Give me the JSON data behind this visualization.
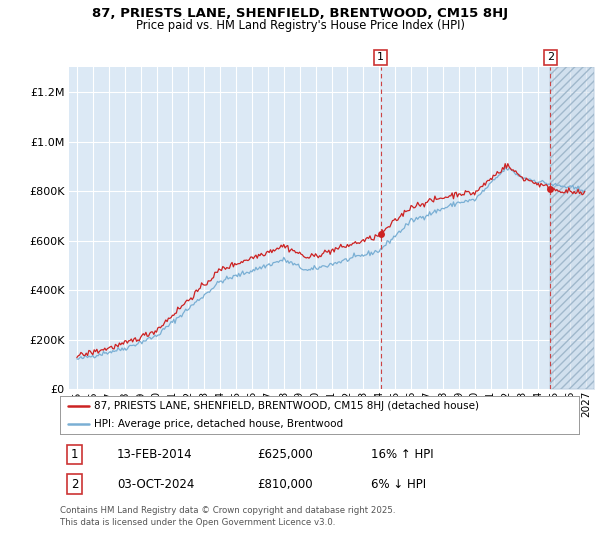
{
  "title_line1": "87, PRIESTS LANE, SHENFIELD, BRENTWOOD, CM15 8HJ",
  "title_line2": "Price paid vs. HM Land Registry's House Price Index (HPI)",
  "background_color": "#ffffff",
  "plot_bg_color": "#dce9f5",
  "grid_color": "#ffffff",
  "red_color": "#cc2222",
  "blue_color": "#7aafd4",
  "hatch_color": "#b0c4d8",
  "sale1_date": "13-FEB-2014",
  "sale1_price": 625000,
  "sale1_label": "16% ↑ HPI",
  "sale2_date": "03-OCT-2024",
  "sale2_price": 810000,
  "sale2_label": "6% ↓ HPI",
  "legend_label_red": "87, PRIESTS LANE, SHENFIELD, BRENTWOOD, CM15 8HJ (detached house)",
  "legend_label_blue": "HPI: Average price, detached house, Brentwood",
  "footer": "Contains HM Land Registry data © Crown copyright and database right 2025.\nThis data is licensed under the Open Government Licence v3.0.",
  "ylim": [
    0,
    1300000
  ],
  "yticks": [
    0,
    200000,
    400000,
    600000,
    800000,
    1000000,
    1200000
  ],
  "xmin": 1994.5,
  "xmax": 2027.5,
  "sale1_year": 2014.083,
  "sale2_year": 2024.75
}
